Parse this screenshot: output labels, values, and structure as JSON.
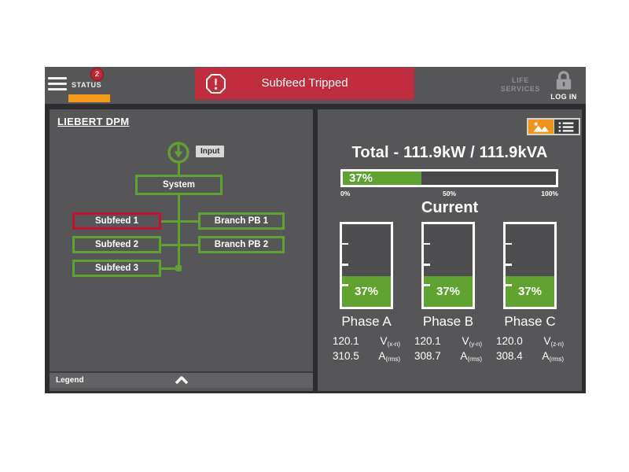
{
  "topbar": {
    "status": {
      "label": "STATUS",
      "badge_count": "2"
    },
    "alert": {
      "text": "Subfeed Tripped"
    },
    "life_services": {
      "line1": "LIFE",
      "line2": "SERVICES"
    },
    "login": {
      "label": "LOG IN"
    }
  },
  "left_panel": {
    "title": "LIEBERT DPM",
    "diagram": {
      "input_label": "Input",
      "system": {
        "label": "System",
        "state": "normal"
      },
      "subfeeds": [
        {
          "label": "Subfeed 1",
          "state": "alarm"
        },
        {
          "label": "Subfeed 2",
          "state": "normal"
        },
        {
          "label": "Subfeed 3",
          "state": "normal"
        }
      ],
      "branches": [
        {
          "label": "Branch PB 1",
          "state": "normal"
        },
        {
          "label": "Branch PB 2",
          "state": "normal"
        }
      ]
    },
    "legend": {
      "label": "Legend"
    }
  },
  "right_panel": {
    "total_title": "Total - 111.9kW / 111.9kVA",
    "load": {
      "percent": 37,
      "label": "37%",
      "scale": [
        "0%",
        "50%",
        "100%"
      ]
    },
    "current_title": "Current",
    "phases": [
      {
        "name": "Phase A",
        "percent": 37,
        "percent_label": "37%",
        "voltage": "120.1",
        "voltage_unit": "V",
        "voltage_sub": "(x-n)",
        "amps": "310.5",
        "amps_unit": "A",
        "amps_sub": "(rms)"
      },
      {
        "name": "Phase B",
        "percent": 37,
        "percent_label": "37%",
        "voltage": "120.1",
        "voltage_unit": "V",
        "voltage_sub": "(y-n)",
        "amps": "308.7",
        "amps_unit": "A",
        "amps_sub": "(rms)"
      },
      {
        "name": "Phase C",
        "percent": 37,
        "percent_label": "37%",
        "voltage": "120.0",
        "voltage_unit": "V",
        "voltage_sub": "(z-n)",
        "amps": "308.4",
        "amps_unit": "A",
        "amps_sub": "(rms)"
      }
    ],
    "view_toggle": {
      "active": "graphic-view"
    }
  },
  "colors": {
    "ok_green": "#5ea32e",
    "alarm_red": "#c22d3e",
    "alarm_border_red": "#c8102e",
    "accent_orange": "#f59a18",
    "panel_gray": "#565659",
    "frame_dark": "#2d2d2f"
  }
}
